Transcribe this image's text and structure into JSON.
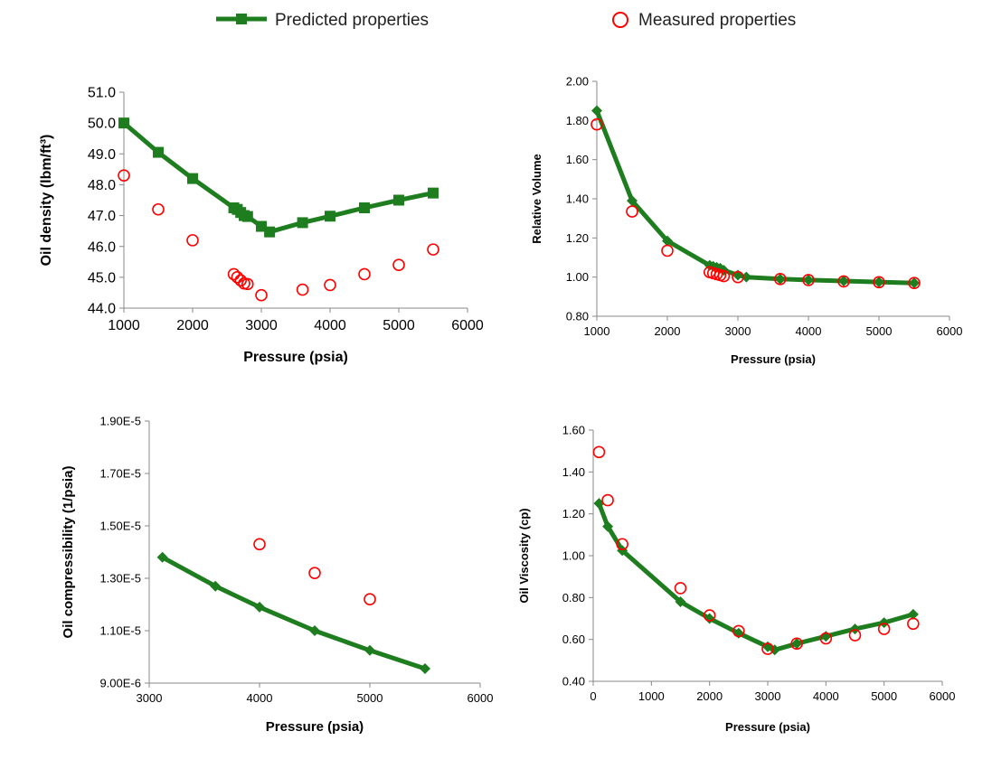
{
  "legend": {
    "predicted_label": "Predicted properties",
    "measured_label": "Measured properties",
    "predicted_color": "#1e7d1e",
    "measured_color": "#ff0000"
  },
  "chart_data": [
    {
      "type": "line",
      "title": "",
      "xlabel": "Pressure (psia)",
      "ylabel": "Oil density (lbm/ft³)",
      "xlim": [
        1000,
        6000
      ],
      "ylim": [
        44.0,
        51.0
      ],
      "xticks": [
        "1000",
        "2000",
        "3000",
        "4000",
        "5000",
        "6000"
      ],
      "yticks": [
        "44.0",
        "45.0",
        "46.0",
        "47.0",
        "48.0",
        "49.0",
        "50.0",
        "51.0"
      ],
      "grid": false,
      "series": [
        {
          "name": "Predicted properties",
          "marker": "square",
          "x": [
            1000,
            1500,
            2000,
            2600,
            2650,
            2700,
            2750,
            2800,
            3000,
            3120,
            3600,
            4000,
            4500,
            5000,
            5500
          ],
          "y": [
            50.0,
            49.05,
            48.2,
            47.25,
            47.2,
            47.1,
            47.0,
            46.97,
            46.65,
            46.47,
            46.77,
            46.98,
            47.25,
            47.5,
            47.73
          ]
        },
        {
          "name": "Measured properties",
          "marker": "circle",
          "x": [
            1000,
            1500,
            2000,
            2600,
            2650,
            2700,
            2750,
            2800,
            3000,
            3600,
            4000,
            4500,
            5000,
            5500
          ],
          "y": [
            48.3,
            47.2,
            46.2,
            45.1,
            45.0,
            44.9,
            44.8,
            44.78,
            44.42,
            44.6,
            44.75,
            45.1,
            45.4,
            45.9
          ]
        }
      ]
    },
    {
      "type": "line",
      "title": "",
      "xlabel": "Pressure (psia)",
      "ylabel": "Relative Volume",
      "xlim": [
        1000,
        6000
      ],
      "ylim": [
        0.8,
        2.0
      ],
      "xticks": [
        "1000",
        "2000",
        "3000",
        "4000",
        "5000",
        "6000"
      ],
      "yticks": [
        "0.80",
        "1.00",
        "1.20",
        "1.40",
        "1.60",
        "1.80",
        "2.00"
      ],
      "grid": false,
      "series": [
        {
          "name": "Predicted properties",
          "marker": "diamond",
          "x": [
            1000,
            1500,
            2000,
            2600,
            2650,
            2700,
            2750,
            2800,
            3000,
            3120,
            3600,
            4000,
            4500,
            5000,
            5500
          ],
          "y": [
            1.85,
            1.39,
            1.185,
            1.06,
            1.055,
            1.05,
            1.045,
            1.035,
            1.01,
            1.0,
            0.99,
            0.985,
            0.98,
            0.975,
            0.97
          ]
        },
        {
          "name": "Measured properties",
          "marker": "circle",
          "x": [
            1000,
            1500,
            2000,
            2600,
            2650,
            2700,
            2750,
            2800,
            3000,
            3600,
            4000,
            4500,
            5000,
            5500
          ],
          "y": [
            1.78,
            1.335,
            1.135,
            1.025,
            1.02,
            1.015,
            1.01,
            1.005,
            1.0,
            0.99,
            0.985,
            0.978,
            0.974,
            0.97
          ]
        }
      ]
    },
    {
      "type": "line",
      "title": "",
      "xlabel": "Pressure (psia)",
      "ylabel": "Oil compressibility (1/psia)",
      "xlim": [
        3000,
        6000
      ],
      "ylim": [
        9e-06,
        1.9e-05
      ],
      "xticks": [
        "3000",
        "4000",
        "5000",
        "6000"
      ],
      "yticks": [
        "9.00E-6",
        "1.10E-5",
        "1.30E-5",
        "1.50E-5",
        "1.70E-5",
        "1.90E-5"
      ],
      "grid": false,
      "series": [
        {
          "name": "Predicted properties",
          "marker": "diamond",
          "x": [
            3120,
            3600,
            4000,
            4500,
            5000,
            5500
          ],
          "y": [
            1.38e-05,
            1.27e-05,
            1.19e-05,
            1.1e-05,
            1.025e-05,
            9.55e-06
          ]
        },
        {
          "name": "Measured properties",
          "marker": "circle",
          "x": [
            4000,
            4500,
            5000
          ],
          "y": [
            1.43e-05,
            1.32e-05,
            1.22e-05
          ]
        }
      ]
    },
    {
      "type": "line",
      "title": "",
      "xlabel": "Pressure (psia)",
      "ylabel": "Oil Viscosity (cp)",
      "xlim": [
        0,
        6000
      ],
      "ylim": [
        0.4,
        1.6
      ],
      "xticks": [
        "0",
        "1000",
        "2000",
        "3000",
        "4000",
        "5000",
        "6000"
      ],
      "yticks": [
        "0.40",
        "0.60",
        "0.80",
        "1.00",
        "1.20",
        "1.40",
        "1.60"
      ],
      "grid": false,
      "series": [
        {
          "name": "Predicted properties",
          "marker": "diamond",
          "x": [
            100,
            250,
            500,
            1500,
            2000,
            2500,
            3000,
            3120,
            3500,
            4000,
            4500,
            5000,
            5500
          ],
          "y": [
            1.25,
            1.14,
            1.025,
            0.78,
            0.7,
            0.63,
            0.565,
            0.55,
            0.58,
            0.615,
            0.65,
            0.68,
            0.72
          ]
        },
        {
          "name": "Measured properties",
          "marker": "circle",
          "x": [
            100,
            250,
            500,
            1500,
            2000,
            2500,
            3000,
            3500,
            4000,
            4500,
            5000,
            5500
          ],
          "y": [
            1.495,
            1.265,
            1.055,
            0.845,
            0.715,
            0.64,
            0.555,
            0.58,
            0.605,
            0.62,
            0.65,
            0.675
          ]
        }
      ]
    }
  ]
}
